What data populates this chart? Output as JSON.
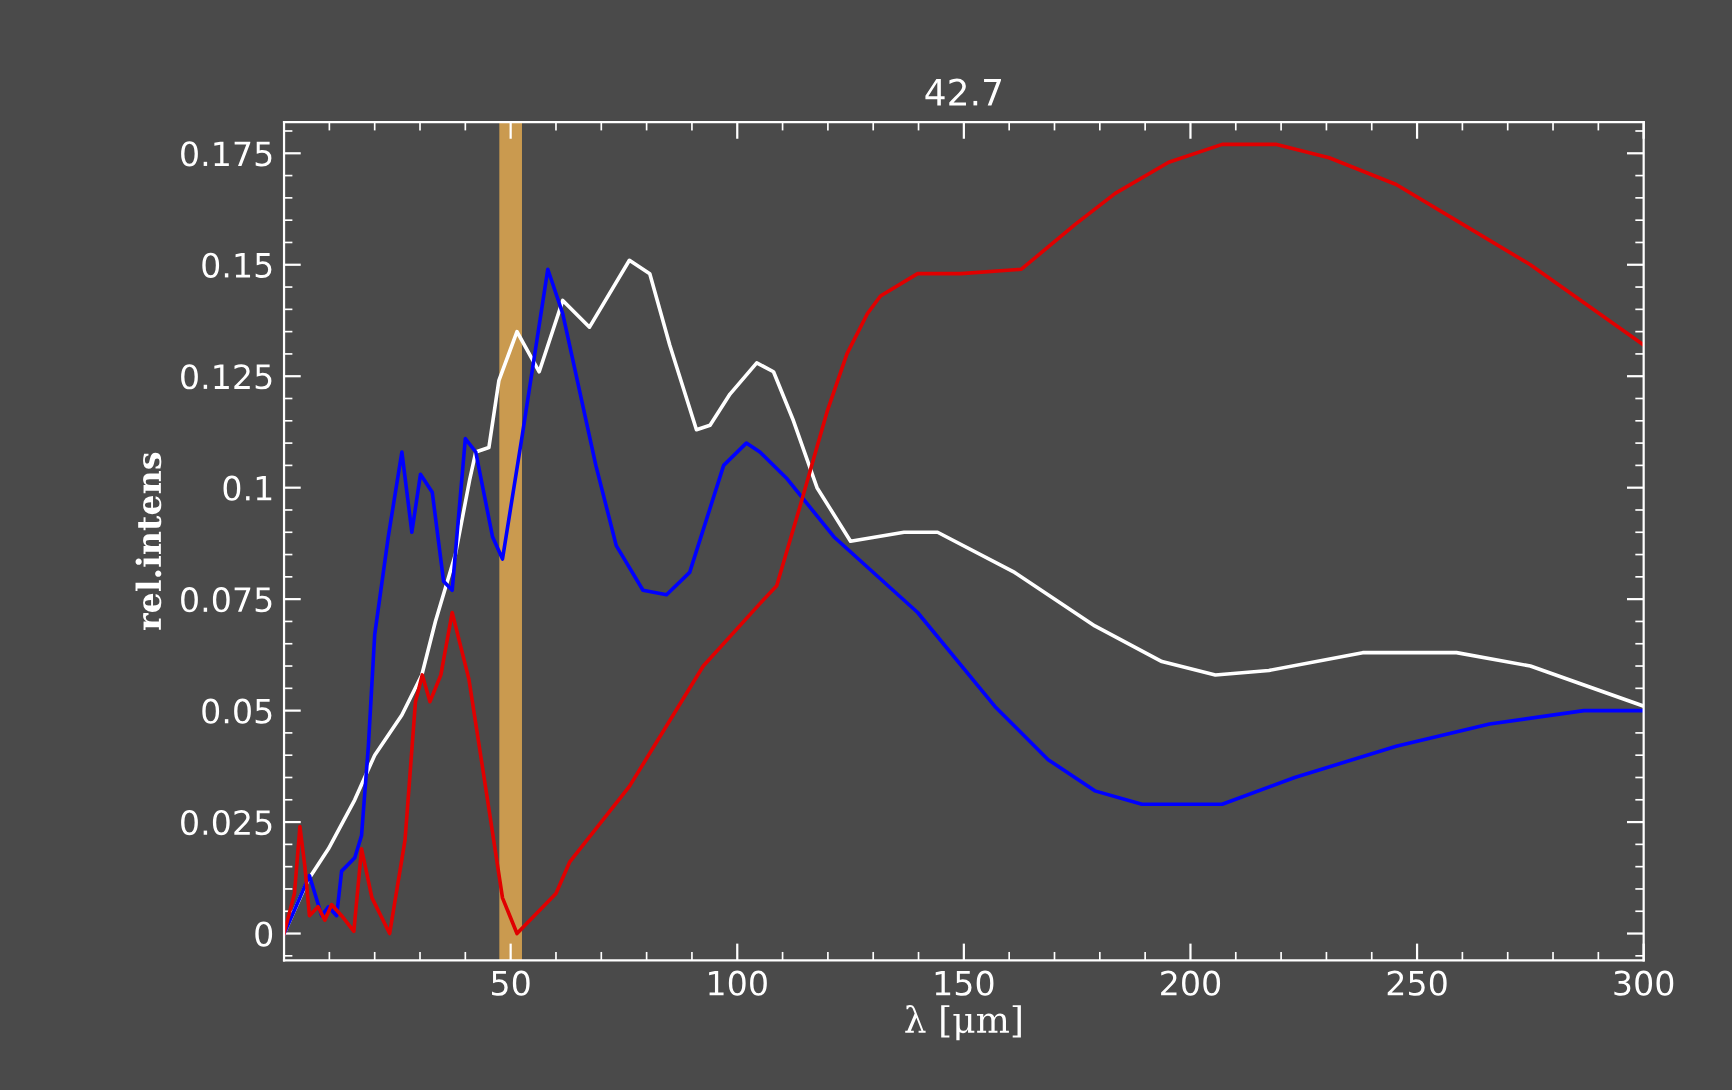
{
  "chart_data": {
    "type": "line",
    "title": "42.7",
    "xlabel": "λ [μm]",
    "ylabel": "rel.intens",
    "xlim": [
      0,
      300
    ],
    "xticks": [
      50,
      100,
      150,
      200,
      250,
      300
    ],
    "ylim": [
      -0.006,
      0.182
    ],
    "yticks": [
      0,
      0.025,
      0.05,
      0.075,
      0.1,
      0.125,
      0.15,
      0.175
    ],
    "grid": false,
    "bands": [
      {
        "axis": "x",
        "from": 47.5,
        "to": 52.5,
        "color": "#e0a850"
      }
    ],
    "series": [
      {
        "color": "#ffffff",
        "x": [
          0,
          5.3,
          9.8,
          15.6,
          20,
          26,
          30.4,
          33.4,
          37.8,
          41,
          42.3,
          45.2,
          47.4,
          51.4,
          56.3,
          61.5,
          67.4,
          76.2,
          80.7,
          85.1,
          91,
          94,
          98.4,
          104.3,
          108,
          112.4,
          117.6,
          125,
          136.8,
          144.2,
          161.2,
          178.9,
          193.7,
          205.5,
          217.3,
          238,
          258.7,
          275,
          300
        ],
        "values": [
          0,
          0.012,
          0.019,
          0.03,
          0.04,
          0.049,
          0.058,
          0.07,
          0.085,
          0.102,
          0.108,
          0.109,
          0.124,
          0.135,
          0.126,
          0.142,
          0.136,
          0.151,
          0.148,
          0.132,
          0.113,
          0.114,
          0.121,
          0.128,
          0.126,
          0.115,
          0.1,
          0.088,
          0.09,
          0.09,
          0.081,
          0.069,
          0.061,
          0.058,
          0.059,
          0.063,
          0.063,
          0.06,
          0.051
        ]
      },
      {
        "color": "#0000ff",
        "x": [
          0,
          2.2,
          5.6,
          8.3,
          9.8,
          11.6,
          12.7,
          15.6,
          17.1,
          18.6,
          20,
          23,
          26,
          28.2,
          30.1,
          32.7,
          35.2,
          37.1,
          40,
          42.3,
          46,
          48.2,
          52.6,
          58.2,
          61.5,
          68.8,
          73.3,
          79.2,
          84.4,
          89.5,
          97,
          102,
          105,
          111,
          121.3,
          139.8,
          156.8,
          168.6,
          178.9,
          189.3,
          207,
          223,
          245.4,
          266,
          286.8,
          300
        ],
        "values": [
          0,
          0.005,
          0.013,
          0.004,
          0.006,
          0.004,
          0.014,
          0.017,
          0.022,
          0.042,
          0.067,
          0.089,
          0.108,
          0.09,
          0.103,
          0.099,
          0.079,
          0.077,
          0.111,
          0.108,
          0.089,
          0.084,
          0.112,
          0.149,
          0.139,
          0.105,
          0.087,
          0.077,
          0.076,
          0.081,
          0.105,
          0.11,
          0.108,
          0.102,
          0.089,
          0.072,
          0.051,
          0.039,
          0.032,
          0.029,
          0.029,
          0.035,
          0.042,
          0.047,
          0.05,
          0.05
        ]
      },
      {
        "color": "#e00000",
        "x": [
          0,
          2.3,
          3.5,
          4.6,
          5.6,
          7.5,
          9,
          10.5,
          12.7,
          15.4,
          17.1,
          19.4,
          23.3,
          26.7,
          29,
          30.5,
          32.2,
          34.6,
          37.1,
          40.8,
          45.2,
          48.2,
          51.4,
          60,
          63,
          76.2,
          92.5,
          105,
          108.7,
          113.9,
          119.8,
          124.2,
          128.7,
          131.6,
          139.8,
          149.4,
          162.7,
          174.5,
          183.4,
          195.2,
          207,
          218.8,
          230.6,
          245.4,
          260.2,
          275,
          300
        ],
        "values": [
          0,
          0.009,
          0.024,
          0.015,
          0.004,
          0.006,
          0.003,
          0.0065,
          0.004,
          0.0005,
          0.019,
          0.008,
          0,
          0.021,
          0.052,
          0.058,
          0.052,
          0.058,
          0.072,
          0.057,
          0.028,
          0.008,
          0,
          0.009,
          0.016,
          0.033,
          0.06,
          0.074,
          0.078,
          0.096,
          0.117,
          0.13,
          0.139,
          0.143,
          0.148,
          0.148,
          0.149,
          0.159,
          0.166,
          0.173,
          0.177,
          0.177,
          0.174,
          0.168,
          0.159,
          0.15,
          0.132
        ]
      }
    ]
  }
}
